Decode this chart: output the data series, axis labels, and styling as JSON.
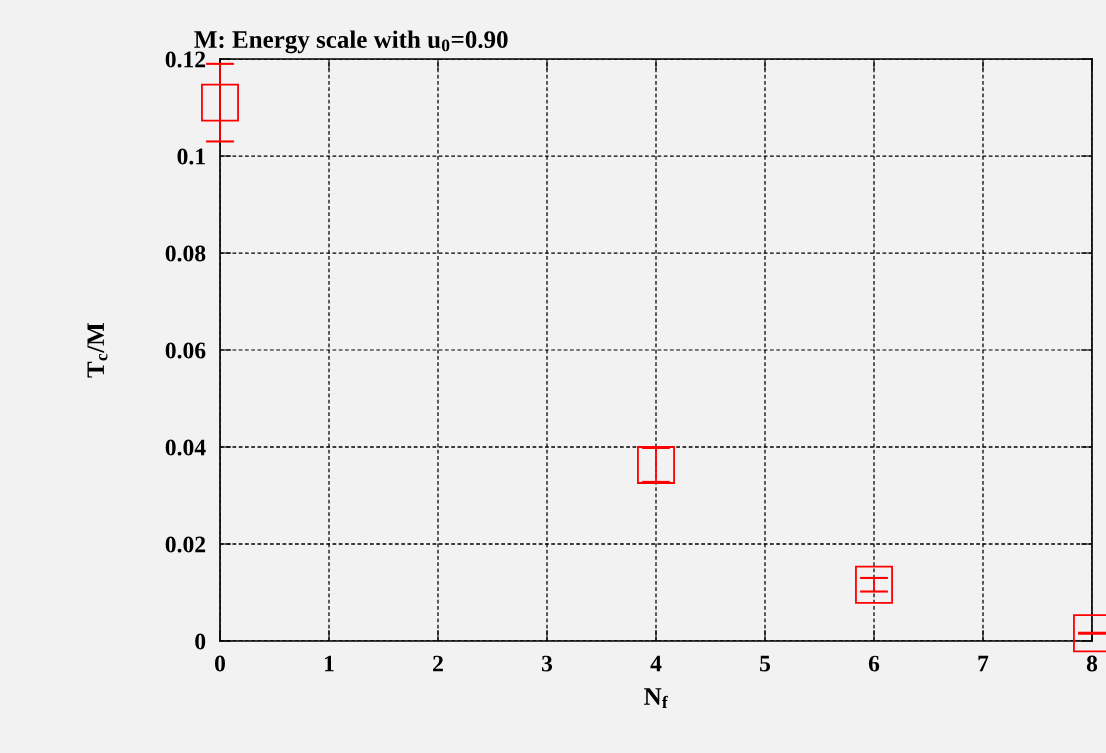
{
  "chart_data": {
    "type": "scatter",
    "title": "M: Energy scale with u$_{0}$=0.90",
    "xlabel": "N$_{f}$",
    "ylabel": "T$_{c}$/M",
    "x": [
      0,
      4,
      6,
      8
    ],
    "series": [
      {
        "color": "#ff0000",
        "values": [
          0.111,
          0.0363,
          0.0116,
          0.0016
        ],
        "errors": [
          0.008,
          0.0035,
          0.0014,
          0.0001
        ]
      }
    ],
    "marker": "square",
    "xlim": [
      0,
      8
    ],
    "ylim": [
      0,
      0.12
    ],
    "xticks": [
      0,
      1,
      2,
      3,
      4,
      5,
      6,
      7,
      8
    ],
    "yticks": [
      0,
      0.02,
      0.04,
      0.06,
      0.08,
      0.1,
      0.12
    ],
    "grid": true
  }
}
